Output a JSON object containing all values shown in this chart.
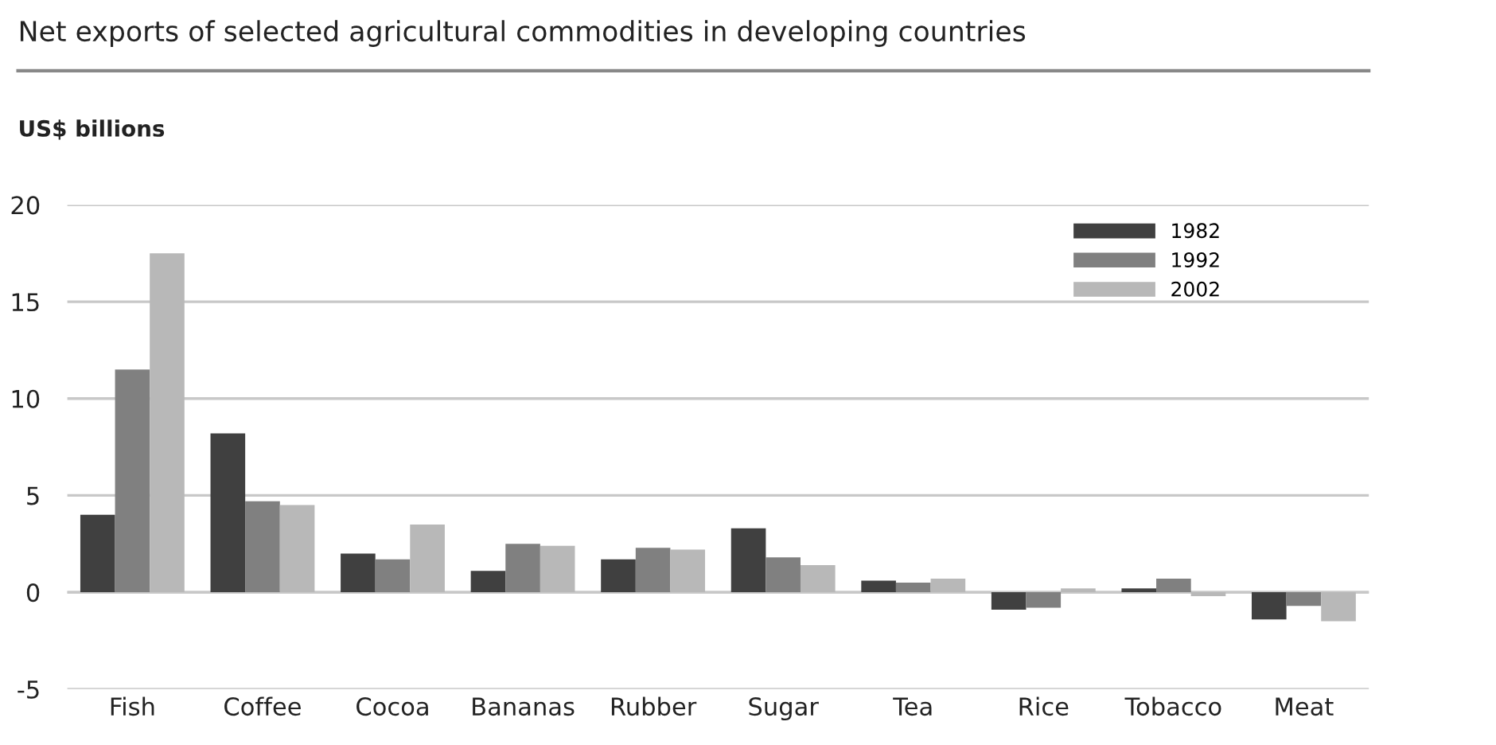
{
  "chart_data": {
    "type": "bar",
    "title": "Net exports of selected agricultural commodities in developing countries",
    "ylabel": "US$ billions",
    "categories": [
      "Fish",
      "Coffee",
      "Cocoa",
      "Bananas",
      "Rubber",
      "Sugar",
      "Tea",
      "Rice",
      "Tobacco",
      "Meat"
    ],
    "series": [
      {
        "name": "1982",
        "color": "#404040",
        "values": [
          4.0,
          8.2,
          2.0,
          1.1,
          1.7,
          3.3,
          0.6,
          -0.9,
          0.2,
          -1.4
        ]
      },
      {
        "name": "1992",
        "color": "#808080",
        "values": [
          11.5,
          4.7,
          1.7,
          2.5,
          2.3,
          1.8,
          0.5,
          -0.8,
          0.7,
          -0.7
        ]
      },
      {
        "name": "2002",
        "color": "#b8b8b8",
        "values": [
          17.5,
          4.5,
          3.5,
          2.4,
          2.2,
          1.4,
          0.7,
          0.2,
          -0.2,
          -1.5
        ]
      }
    ],
    "ylim": [
      -5,
      20
    ],
    "yticks": [
      -5,
      0,
      5,
      10,
      15,
      20
    ],
    "grid": "y",
    "legend": "top right"
  }
}
